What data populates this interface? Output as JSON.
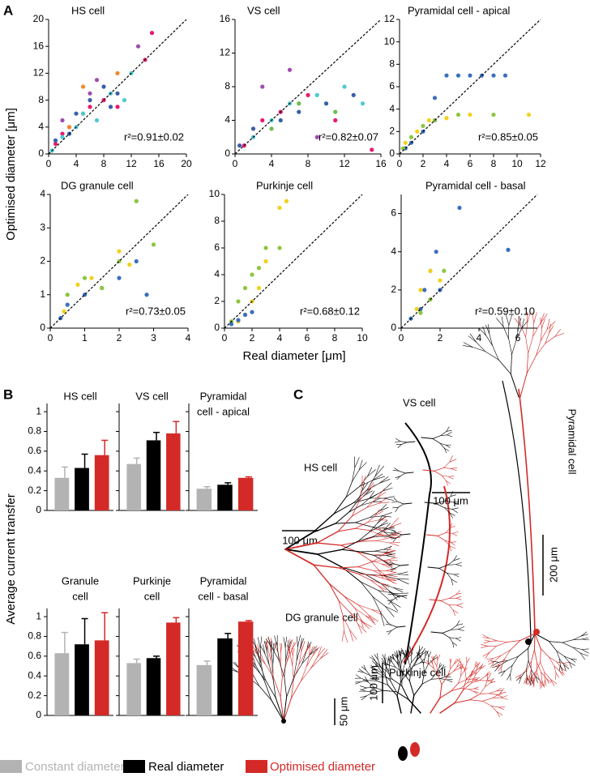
{
  "panel_a": {
    "label": "A",
    "ylabel": "Optimised diameter [μm]",
    "xlabel": "Real diameter [μm]"
  },
  "panel_b": {
    "label": "B",
    "ylabel": "Average current transfer"
  },
  "panel_c": {
    "label": "C",
    "hs": "HS cell",
    "hs_scale": "100 μm",
    "vs": "VS cell",
    "vs_scale": "100 μm",
    "pyramidal": "Pyramidal cell",
    "pyramidal_scale": "200 μm",
    "dg": "DG granule cell",
    "dg_scale": "50 μm",
    "purkinje": "Purkinje cell",
    "purkinje_scale": "100 μm"
  },
  "chart_data": [
    {
      "type": "scatter",
      "title": "HS cell",
      "annotation": "r²=0.91±0.02",
      "xlim": [
        0,
        20
      ],
      "ylim": [
        0,
        20
      ],
      "xticks": [
        0,
        4,
        8,
        12,
        16,
        20
      ],
      "yticks": [
        0,
        4,
        8,
        12,
        16,
        20
      ],
      "series": [
        {
          "color": "#e8196f",
          "x": [
            1,
            2,
            3,
            5,
            6,
            8,
            10,
            14,
            15
          ],
          "values": [
            1.5,
            3,
            4,
            6,
            7,
            8,
            7,
            14,
            18
          ]
        },
        {
          "color": "#4fc9d6",
          "x": [
            0.5,
            2,
            4,
            5,
            7,
            9,
            11,
            12
          ],
          "values": [
            0.5,
            2.5,
            4,
            6,
            5,
            9,
            8,
            12
          ]
        },
        {
          "color": "#3a5fa8",
          "x": [
            1,
            3,
            4,
            6,
            8,
            9,
            10
          ],
          "values": [
            2,
            3,
            6,
            8,
            10,
            7,
            9
          ]
        },
        {
          "color": "#a04cb0",
          "x": [
            2,
            6,
            7,
            13
          ],
          "values": [
            5,
            9,
            11,
            16
          ]
        },
        {
          "color": "#f08a2c",
          "x": [
            3,
            5,
            10
          ],
          "values": [
            4,
            10,
            12
          ]
        }
      ]
    },
    {
      "type": "scatter",
      "title": "VS cell",
      "annotation": "r²=0.82±0.07",
      "xlim": [
        0,
        16
      ],
      "ylim": [
        0,
        16
      ],
      "xticks": [
        0,
        4,
        8,
        12,
        16
      ],
      "yticks": [
        0,
        4,
        8,
        12,
        16
      ],
      "series": [
        {
          "color": "#e8196f",
          "x": [
            1,
            3,
            5,
            8,
            11,
            15
          ],
          "values": [
            1,
            4,
            5,
            7,
            4,
            0.5
          ]
        },
        {
          "color": "#4fc9d6",
          "x": [
            2,
            4,
            6,
            9,
            12,
            14
          ],
          "values": [
            2,
            4,
            6,
            7,
            8,
            6
          ]
        },
        {
          "color": "#3a5fa8",
          "x": [
            0.5,
            2,
            5,
            7,
            10,
            13
          ],
          "values": [
            1,
            3,
            4,
            5,
            6,
            7
          ]
        },
        {
          "color": "#a04cb0",
          "x": [
            3,
            6,
            9
          ],
          "values": [
            8,
            10,
            2
          ]
        },
        {
          "color": "#6bbf4e",
          "x": [
            4,
            7,
            11
          ],
          "values": [
            3,
            6,
            5
          ]
        }
      ]
    },
    {
      "type": "scatter",
      "title": "Pyramidal cell - apical",
      "annotation": "r²=0.85±0.05",
      "xlim": [
        0,
        12
      ],
      "ylim": [
        0,
        12
      ],
      "xticks": [
        0,
        2,
        4,
        6,
        8,
        10,
        12
      ],
      "yticks": [
        0,
        2,
        4,
        6,
        8,
        10,
        12
      ],
      "series": [
        {
          "color": "#3a6fc0",
          "x": [
            0.5,
            1,
            2,
            3,
            3,
            4,
            5,
            6,
            7,
            8,
            9
          ],
          "values": [
            0.5,
            1,
            2,
            3,
            5,
            7,
            7,
            7,
            7,
            7,
            7
          ]
        },
        {
          "color": "#8cc63f",
          "x": [
            0.3,
            1,
            2,
            3,
            5,
            8
          ],
          "values": [
            0.5,
            1.5,
            2.5,
            3,
            3.5,
            3.5
          ]
        },
        {
          "color": "#f2d21b",
          "x": [
            0.5,
            1.5,
            2.5,
            4,
            6,
            11
          ],
          "values": [
            1,
            2,
            3,
            3.2,
            3.5,
            3.5
          ]
        }
      ]
    },
    {
      "type": "scatter",
      "title": "DG granule cell",
      "annotation": "r²=0.73±0.05",
      "xlim": [
        0,
        4
      ],
      "ylim": [
        0,
        4
      ],
      "xticks": [
        0,
        1,
        2,
        3,
        4
      ],
      "yticks": [
        0,
        1,
        2,
        3,
        4
      ],
      "series": [
        {
          "color": "#3a6fc0",
          "x": [
            0.3,
            0.5,
            1,
            1.5,
            2,
            2.5,
            2.8
          ],
          "values": [
            0.3,
            0.7,
            1,
            1.2,
            1.5,
            2,
            1
          ]
        },
        {
          "color": "#8cc63f",
          "x": [
            0.5,
            1,
            1.5,
            2,
            2.5,
            3
          ],
          "values": [
            1,
            1.5,
            1.2,
            2,
            3.8,
            2.5
          ]
        },
        {
          "color": "#f2d21b",
          "x": [
            0.4,
            0.8,
            1.2,
            2,
            2.3
          ],
          "values": [
            0.5,
            1.3,
            1.5,
            2.3,
            1.9
          ]
        }
      ]
    },
    {
      "type": "scatter",
      "title": "Purkinje cell",
      "annotation": "r²=0.68±0.12",
      "xlim": [
        0,
        10
      ],
      "ylim": [
        0,
        10
      ],
      "xticks": [
        0,
        2,
        4,
        6,
        8,
        10
      ],
      "yticks": [
        0,
        2,
        4,
        6,
        8,
        10
      ],
      "series": [
        {
          "color": "#f2d21b",
          "x": [
            1,
            1.5,
            2,
            2.5,
            3,
            4,
            4.5
          ],
          "values": [
            0.5,
            1,
            2,
            3,
            5,
            9,
            9.5
          ]
        },
        {
          "color": "#8cc63f",
          "x": [
            0.5,
            1,
            1.5,
            2,
            2.5,
            3,
            4
          ],
          "values": [
            0.5,
            2,
            3,
            4,
            4.5,
            6,
            6
          ]
        },
        {
          "color": "#3a6fc0",
          "x": [
            0.5,
            1,
            1.5,
            2
          ],
          "values": [
            0.3,
            0.6,
            1,
            1.2
          ]
        }
      ]
    },
    {
      "type": "scatter",
      "title": "Pyramidal cell - basal",
      "annotation": "r²=0.59±0.10",
      "xlim": [
        0,
        7
      ],
      "ylim": [
        0,
        7
      ],
      "xticks": [
        0,
        2,
        4,
        6
      ],
      "yticks": [
        0,
        2,
        4,
        6
      ],
      "series": [
        {
          "color": "#3a6fc0",
          "x": [
            0.5,
            1,
            1.2,
            1.5,
            1.8,
            2,
            3,
            5.5
          ],
          "values": [
            0.5,
            1,
            2,
            3,
            4,
            2,
            6.3,
            4.1
          ]
        },
        {
          "color": "#f2d21b",
          "x": [
            0.8,
            1,
            1.5,
            2
          ],
          "values": [
            1,
            2,
            3,
            2.5
          ]
        },
        {
          "color": "#8cc63f",
          "x": [
            1,
            1.5,
            2.2
          ],
          "values": [
            0.8,
            1.5,
            3
          ]
        }
      ]
    },
    {
      "type": "bar",
      "title": [
        "HS cell"
      ],
      "ylim": [
        0,
        1.05
      ],
      "yticks": [
        0,
        0.2,
        0.4,
        0.6,
        0.8,
        1
      ],
      "series": [
        {
          "name": "Constant diameter",
          "color": "#b3b3b3",
          "values": [
            0.33
          ],
          "errors": [
            0.11
          ]
        },
        {
          "name": "Real diameter",
          "color": "#000000",
          "values": [
            0.43
          ],
          "errors": [
            0.14
          ]
        },
        {
          "name": "Optimised diameter",
          "color": "#d42a27",
          "values": [
            0.56
          ],
          "errors": [
            0.15
          ]
        }
      ]
    },
    {
      "type": "bar",
      "title": [
        "VS cell"
      ],
      "ylim": [
        0,
        1.05
      ],
      "yticks": [
        0,
        0.2,
        0.4,
        0.6,
        0.8,
        1
      ],
      "series": [
        {
          "name": "Constant diameter",
          "color": "#b3b3b3",
          "values": [
            0.47
          ],
          "errors": [
            0.06
          ]
        },
        {
          "name": "Real diameter",
          "color": "#000000",
          "values": [
            0.71
          ],
          "errors": [
            0.08
          ]
        },
        {
          "name": "Optimised diameter",
          "color": "#d42a27",
          "values": [
            0.78
          ],
          "errors": [
            0.12
          ]
        }
      ]
    },
    {
      "type": "bar",
      "title": [
        "Pyramidal",
        "cell - apical"
      ],
      "ylim": [
        0,
        1.05
      ],
      "yticks": [
        0,
        0.2,
        0.4,
        0.6,
        0.8,
        1
      ],
      "series": [
        {
          "name": "Constant diameter",
          "color": "#b3b3b3",
          "values": [
            0.22
          ],
          "errors": [
            0.02
          ]
        },
        {
          "name": "Real diameter",
          "color": "#000000",
          "values": [
            0.26
          ],
          "errors": [
            0.02
          ]
        },
        {
          "name": "Optimised diameter",
          "color": "#d42a27",
          "values": [
            0.33
          ],
          "errors": [
            0.01
          ]
        }
      ]
    },
    {
      "type": "bar",
      "title": [
        "Granule",
        "cell"
      ],
      "ylim": [
        0,
        1.05
      ],
      "yticks": [
        0,
        0.2,
        0.4,
        0.6,
        0.8,
        1
      ],
      "series": [
        {
          "name": "Constant diameter",
          "color": "#b3b3b3",
          "values": [
            0.63
          ],
          "errors": [
            0.21
          ]
        },
        {
          "name": "Real diameter",
          "color": "#000000",
          "values": [
            0.72
          ],
          "errors": [
            0.26
          ]
        },
        {
          "name": "Optimised diameter",
          "color": "#d42a27",
          "values": [
            0.76
          ],
          "errors": [
            0.28
          ]
        }
      ]
    },
    {
      "type": "bar",
      "title": [
        "Purkinje",
        "cell"
      ],
      "ylim": [
        0,
        1.05
      ],
      "yticks": [
        0,
        0.2,
        0.4,
        0.6,
        0.8,
        1
      ],
      "series": [
        {
          "name": "Constant diameter",
          "color": "#b3b3b3",
          "values": [
            0.53
          ],
          "errors": [
            0.04
          ]
        },
        {
          "name": "Real diameter",
          "color": "#000000",
          "values": [
            0.58
          ],
          "errors": [
            0.02
          ]
        },
        {
          "name": "Optimised diameter",
          "color": "#d42a27",
          "values": [
            0.94
          ],
          "errors": [
            0.05
          ]
        }
      ]
    },
    {
      "type": "bar",
      "title": [
        "Pyramidal",
        "cell - basal"
      ],
      "ylim": [
        0,
        1.05
      ],
      "yticks": [
        0,
        0.2,
        0.4,
        0.6,
        0.8,
        1
      ],
      "series": [
        {
          "name": "Constant diameter",
          "color": "#b3b3b3",
          "values": [
            0.51
          ],
          "errors": [
            0.04
          ]
        },
        {
          "name": "Real diameter",
          "color": "#000000",
          "values": [
            0.78
          ],
          "errors": [
            0.05
          ]
        },
        {
          "name": "Optimised diameter",
          "color": "#d42a27",
          "values": [
            0.95
          ],
          "errors": [
            0.01
          ]
        }
      ]
    }
  ]
}
